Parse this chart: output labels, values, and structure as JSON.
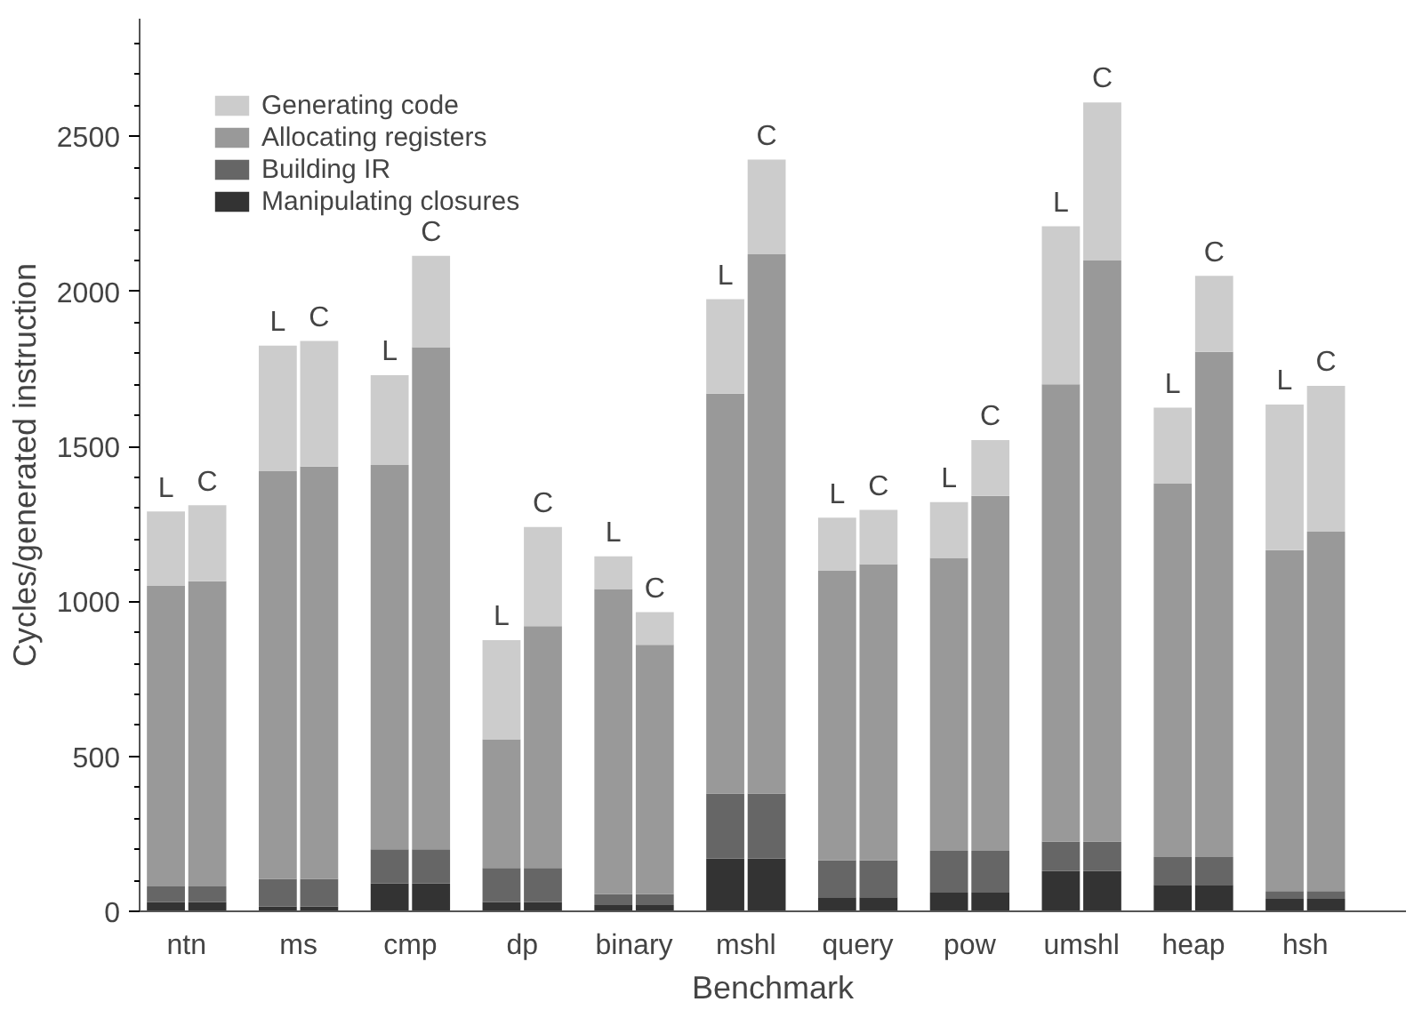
{
  "chart_data": {
    "type": "bar",
    "stacked": true,
    "xlabel": "Benchmark",
    "ylabel": "Cycles/generated instruction",
    "categories": [
      "L",
      "C",
      "L",
      "C",
      "L",
      "C",
      "L",
      "C",
      "L",
      "C",
      "L",
      "C",
      "L",
      "C",
      "L",
      "C",
      "L",
      "C",
      "L",
      "C",
      "L",
      "C"
    ],
    "annotations": [
      "ntn",
      "ms",
      "cmp",
      "dp",
      "binary",
      "mshl",
      "query",
      "pow",
      "umshl",
      "heap",
      "hsh"
    ],
    "series": [
      {
        "name": "Manipulating closures",
        "color": "#333333",
        "values": [
          30,
          30,
          15,
          15,
          90,
          90,
          30,
          30,
          20,
          20,
          170,
          170,
          45,
          45,
          60,
          60,
          130,
          130,
          85,
          85,
          40,
          40
        ]
      },
      {
        "name": "Building IR",
        "color": "#666666",
        "values": [
          50,
          50,
          90,
          90,
          110,
          110,
          110,
          110,
          35,
          35,
          210,
          210,
          120,
          120,
          135,
          135,
          95,
          95,
          90,
          90,
          25,
          25
        ]
      },
      {
        "name": "Allocating registers",
        "color": "#999999",
        "values": [
          970,
          985,
          1315,
          1330,
          1240,
          1620,
          415,
          780,
          985,
          805,
          1290,
          1740,
          935,
          955,
          945,
          1145,
          1475,
          1875,
          1205,
          1630,
          1100,
          1160
        ]
      },
      {
        "name": "Generating code",
        "color": "#cccccc",
        "values": [
          240,
          245,
          405,
          405,
          290,
          295,
          320,
          320,
          105,
          105,
          305,
          305,
          170,
          175,
          180,
          180,
          510,
          510,
          245,
          245,
          470,
          470
        ]
      }
    ],
    "ylim": [
      0,
      2880
    ],
    "yticks": [
      0,
      {
        "value": 100,
        "label": null
      },
      {
        "value": 200,
        "label": null
      },
      {
        "value": 300,
        "label": null
      },
      {
        "value": 400,
        "label": null
      },
      500,
      {
        "value": 600,
        "label": null
      },
      {
        "value": 700,
        "label": null
      },
      {
        "value": 800,
        "label": null
      },
      {
        "value": 900,
        "label": null
      },
      1000,
      {
        "value": 1100,
        "label": null
      },
      {
        "value": 1200,
        "label": null
      },
      {
        "value": 1300,
        "label": null
      },
      {
        "value": 1400,
        "label": null
      },
      1500,
      {
        "value": 1600,
        "label": null
      },
      {
        "value": 1700,
        "label": null
      },
      {
        "value": 1800,
        "label": null
      },
      {
        "value": 1900,
        "label": null
      },
      2000,
      {
        "value": 2100,
        "label": null
      },
      {
        "value": 2200,
        "label": null
      },
      {
        "value": 2300,
        "label": null
      },
      {
        "value": 2400,
        "label": null
      },
      2500,
      {
        "value": 2600,
        "label": null
      },
      {
        "value": 2700,
        "label": null
      },
      {
        "value": 2800,
        "label": null
      }
    ],
    "grid": false,
    "legend": "top left"
  }
}
